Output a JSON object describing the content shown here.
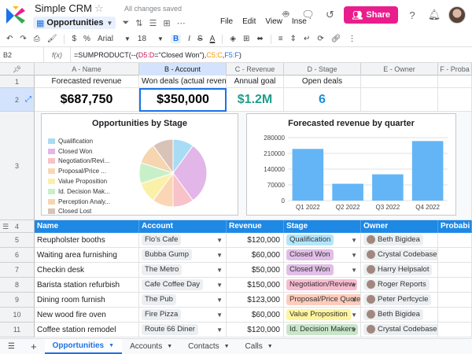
{
  "app": {
    "doc_title": "Simple CRM",
    "saved_status": "All changes saved",
    "sheet_name": "Opportunities",
    "menus": [
      "File",
      "Edit",
      "View",
      "Inse"
    ],
    "share_label": "Share"
  },
  "toolbar": {
    "font": "Arial",
    "font_size": "18",
    "bold": "B",
    "italic": "I",
    "strike": "S",
    "color": "A"
  },
  "formula_bar": {
    "cell_ref": "B2",
    "fx": "f(x)",
    "f_prefix": "=SUMPRODUCT(--(",
    "f_range1": "D5:D",
    "f_eq": "=\"Closed Won\"),",
    "f_range2": "C5:C",
    "f_comma": ",",
    "f_range3": "F5:F",
    "f_suffix": ")"
  },
  "columns": [
    {
      "key": "a",
      "label": "A - Name"
    },
    {
      "key": "b",
      "label": "B - Account"
    },
    {
      "key": "c",
      "label": "C - Revenue"
    },
    {
      "key": "d",
      "label": "D - Stage"
    },
    {
      "key": "e",
      "label": "E - Owner"
    },
    {
      "key": "f",
      "label": "F - Proba"
    }
  ],
  "row_numbers": [
    "1",
    "2",
    "3",
    "4",
    "5",
    "6",
    "7",
    "8",
    "9",
    "10",
    "11"
  ],
  "summary": {
    "labels": [
      "Forecasted revenue",
      "Won deals (actual revenue)",
      "Annual goal",
      "Open deals"
    ],
    "values": [
      "$687,750",
      "$350,000",
      "$1.2M",
      "6"
    ],
    "colors": [
      "#000000",
      "#000000",
      "#1e9e8a",
      "#1a8fd9"
    ]
  },
  "pie_chart": {
    "title": "Opportunities by Stage",
    "legend": [
      "Qualification",
      "Closed Won",
      "Negotiation/Revi...",
      "Proposal/Price ...",
      "Value Proposition",
      "Id. Decision Mak...",
      "Perception Analy...",
      "Closed Lost"
    ]
  },
  "bar_chart": {
    "title": "Forecasted revenue by quarter"
  },
  "chart_data": [
    {
      "type": "pie",
      "title": "Opportunities by Stage",
      "categories": [
        "Qualification",
        "Closed Won",
        "Negotiation/Revi...",
        "Proposal/Price ...",
        "Value Proposition",
        "Id. Decision Mak...",
        "Perception Analy...",
        "Closed Lost"
      ],
      "values": [
        1,
        3,
        1,
        1,
        1,
        1,
        1,
        1
      ],
      "colors": [
        "#a8dcf5",
        "#e2b6e8",
        "#f7c2c8",
        "#fbd6b4",
        "#fbf0a8",
        "#c8f0c8",
        "#f5d6b0",
        "#d9c2b8"
      ]
    },
    {
      "type": "bar",
      "title": "Forecasted revenue by quarter",
      "categories": [
        "Q1 2022",
        "Q2 2022",
        "Q3 2022",
        "Q4 2022"
      ],
      "values": [
        230000,
        75000,
        117000,
        265000
      ],
      "ylim": [
        0,
        280000
      ],
      "yticks": [
        "0",
        "70000",
        "140000",
        "210000",
        "280000"
      ],
      "color": "#64b5f6",
      "grid": true
    }
  ],
  "table": {
    "headers": [
      "Name",
      "Account",
      "Revenue",
      "Stage",
      "Owner",
      "Probabi"
    ],
    "rows": [
      {
        "name": "Reupholster booths",
        "account": "Flo's Cafe",
        "revenue": "$120,000",
        "stage": "Qualification",
        "stage_color": "#b3e5fc",
        "owner": "Beth Bigidea"
      },
      {
        "name": "Waiting area furnishing",
        "account": "Bubba Gump",
        "revenue": "$60,000",
        "stage": "Closed Won",
        "stage_color": "#e1bee7",
        "owner": "Crystal Codebase"
      },
      {
        "name": "Checkin desk",
        "account": "The Metro",
        "revenue": "$50,000",
        "stage": "Closed Won",
        "stage_color": "#e1bee7",
        "owner": "Harry Helpsalot"
      },
      {
        "name": "Barista station refurbish",
        "account": "Cafe Coffee Day",
        "revenue": "$150,000",
        "stage": "Negotiation/Review",
        "stage_color": "#f8bbd0",
        "owner": "Roger Reports"
      },
      {
        "name": "Dining room furnish",
        "account": "The Pub",
        "revenue": "$123,000",
        "stage": "Proposal/Price Quote",
        "stage_color": "#ffccbc",
        "owner": "Peter Perfcycle"
      },
      {
        "name": "New wood fire oven",
        "account": "Fire Pizza",
        "revenue": "$60,000",
        "stage": "Value Proposition",
        "stage_color": "#fff59d",
        "owner": "Beth Bigidea"
      },
      {
        "name": "Coffee station remodel",
        "account": "Route 66 Diner",
        "revenue": "$120,000",
        "stage": "Id. Decision Makers",
        "stage_color": "#c8e6c9",
        "owner": "Crystal Codebase"
      }
    ]
  },
  "bottom_tabs": [
    "Opportunities",
    "Accounts",
    "Contacts",
    "Calls"
  ]
}
